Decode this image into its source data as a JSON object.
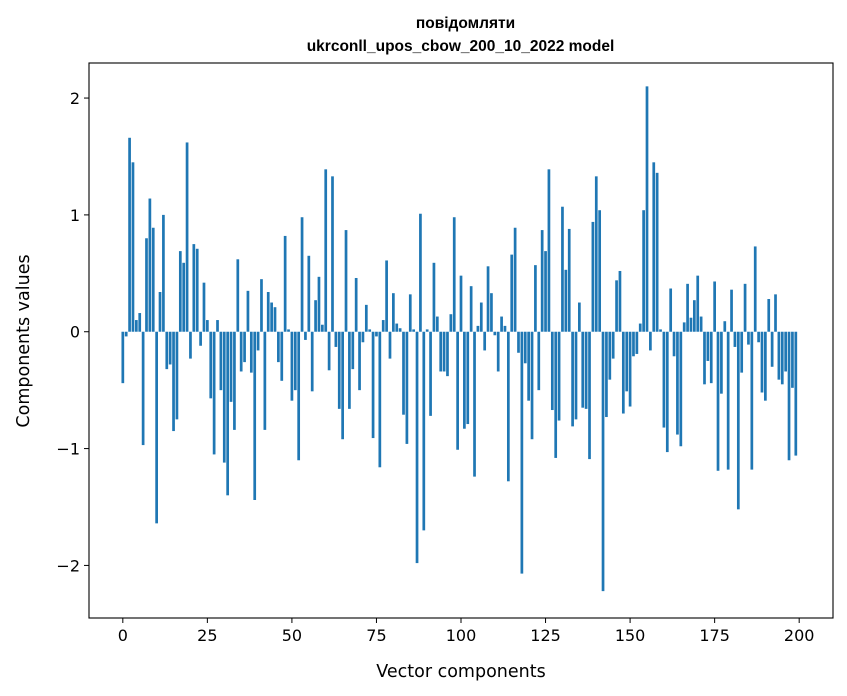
{
  "chart_data": {
    "type": "bar",
    "title_line1": "повідомляти",
    "title_line2": "ukrconll_upos_cbow_200_10_2022 model",
    "xlabel": "Vector components",
    "ylabel": "Components values",
    "xlim": [
      -10,
      210
    ],
    "ylim": [
      -2.45,
      2.3
    ],
    "xticks": [
      0,
      25,
      50,
      75,
      100,
      125,
      150,
      175,
      200
    ],
    "yticks": [
      -2,
      -1,
      0,
      1,
      2
    ],
    "ytick_labels": [
      "−2",
      "−1",
      "0",
      "1",
      "2"
    ],
    "bar_color": "#1f77b4",
    "grid": false,
    "values": [
      -0.44,
      -0.04,
      1.66,
      1.45,
      0.1,
      0.16,
      -0.97,
      0.8,
      1.14,
      0.89,
      -1.64,
      0.34,
      1.0,
      -0.32,
      -0.28,
      -0.85,
      -0.75,
      0.69,
      0.59,
      1.62,
      -0.23,
      0.75,
      0.71,
      -0.12,
      0.42,
      0.1,
      -0.57,
      -1.05,
      0.1,
      -0.5,
      -1.12,
      -1.4,
      -0.6,
      -0.84,
      0.62,
      -0.34,
      -0.26,
      0.35,
      -0.35,
      -1.44,
      -0.16,
      0.45,
      -0.84,
      0.34,
      0.25,
      0.21,
      -0.26,
      -0.42,
      0.82,
      0.02,
      -0.59,
      -0.5,
      -1.1,
      0.98,
      -0.07,
      0.65,
      -0.51,
      0.27,
      0.47,
      0.06,
      1.39,
      -0.33,
      1.33,
      -0.13,
      -0.66,
      -0.92,
      0.87,
      -0.66,
      -0.32,
      0.46,
      -0.5,
      -0.09,
      0.23,
      0.02,
      -0.91,
      -0.04,
      -1.16,
      0.1,
      0.61,
      -0.23,
      0.33,
      0.07,
      0.03,
      -0.71,
      -0.96,
      0.32,
      0.02,
      -1.98,
      1.01,
      -1.7,
      0.02,
      -0.72,
      0.59,
      0.13,
      -0.34,
      -0.34,
      -0.38,
      0.15,
      0.98,
      -1.01,
      0.48,
      -0.83,
      -0.79,
      0.39,
      -1.24,
      0.05,
      0.25,
      -0.16,
      0.56,
      0.33,
      -0.03,
      -0.34,
      0.13,
      0.05,
      -1.28,
      0.66,
      0.89,
      -0.18,
      -2.07,
      -0.27,
      -0.59,
      -0.92,
      0.57,
      -0.5,
      0.87,
      0.69,
      1.39,
      -0.67,
      -1.08,
      -0.76,
      1.07,
      0.53,
      0.88,
      -0.81,
      -0.75,
      0.25,
      -0.65,
      -0.66,
      -1.09,
      0.94,
      1.33,
      1.04,
      -2.22,
      -0.73,
      -0.41,
      -0.23,
      0.44,
      0.52,
      -0.7,
      -0.51,
      -0.64,
      -0.21,
      -0.19,
      0.07,
      1.04,
      2.1,
      -0.16,
      1.45,
      1.36,
      0.02,
      -0.82,
      -1.03,
      0.37,
      -0.21,
      -0.88,
      -0.98,
      0.08,
      0.41,
      0.12,
      0.27,
      0.48,
      0.13,
      -0.45,
      -0.25,
      -0.44,
      0.43,
      -1.19,
      -0.53,
      0.09,
      -1.18,
      0.36,
      -0.13,
      -1.52,
      -0.35,
      0.41,
      -0.11,
      -1.18,
      0.73,
      -0.09,
      -0.52,
      -0.59,
      0.28,
      -0.3,
      0.32,
      -0.41,
      -0.45,
      -0.34,
      -1.1,
      -0.48,
      -1.06
    ]
  }
}
